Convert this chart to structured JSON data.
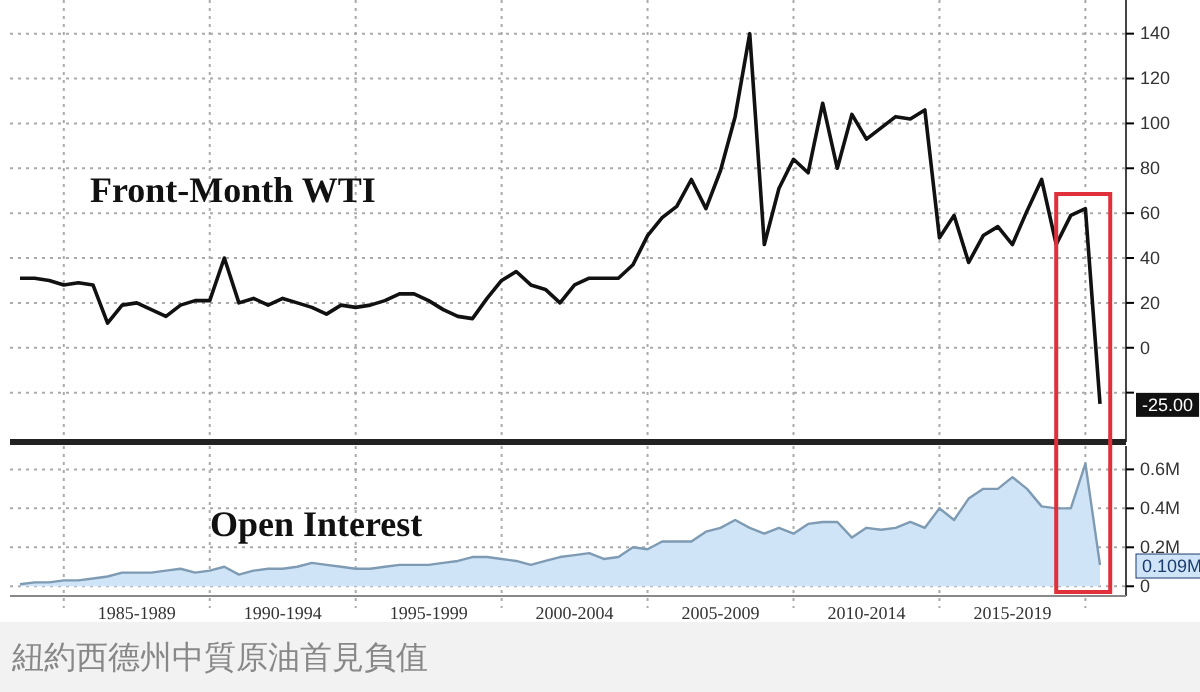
{
  "chart_data": [
    {
      "type": "line",
      "title": "Front-Month WTI",
      "tick_labels": "y",
      "grid": true,
      "ylim": [
        -42,
        155
      ],
      "categories": [
        null,
        null,
        null,
        null,
        null,
        null,
        null,
        null,
        null,
        null,
        null,
        null,
        null,
        null,
        null,
        null,
        null,
        null,
        null,
        null,
        null,
        null,
        null,
        null,
        null,
        null,
        null,
        null,
        null,
        null,
        null,
        null,
        null,
        null,
        null,
        null,
        null,
        null,
        null,
        null,
        null,
        null,
        null,
        null,
        null,
        null,
        null,
        null,
        null,
        null,
        null,
        null,
        null,
        null,
        null,
        null,
        null,
        null,
        null,
        null,
        null,
        null,
        null,
        null,
        null,
        null,
        null,
        null,
        null,
        null,
        null,
        null,
        null,
        null,
        null
      ],
      "yticks": [
        {
          "value": -20,
          "label": null
        },
        0,
        20,
        40,
        60,
        80,
        100,
        120,
        140
      ],
      "annotations": [
        "-25.00"
      ],
      "series": [
        {
          "color": "#111111",
          "values": [
            31,
            31,
            30,
            28,
            29,
            28,
            11,
            19,
            20,
            17,
            14,
            19,
            21,
            21,
            40,
            20,
            22,
            19,
            22,
            20,
            18,
            15,
            19,
            18,
            19,
            21,
            24,
            24,
            21,
            17,
            14,
            13,
            22,
            30,
            34,
            28,
            26,
            20,
            28,
            31,
            31,
            31,
            37,
            50,
            58,
            63,
            75,
            62,
            79,
            103,
            140,
            46,
            71,
            84,
            78,
            109,
            80,
            104,
            93,
            98,
            103,
            102,
            106,
            49,
            59,
            38,
            50,
            54,
            46,
            61,
            75,
            46,
            59,
            62,
            -25
          ]
        }
      ]
    },
    {
      "type": "area",
      "title": "Open Interest",
      "grid": true,
      "ylim": [
        -0.05,
        0.72
      ],
      "categories": [
        null,
        null,
        null,
        null,
        null,
        null,
        null,
        null,
        "1985-1989",
        null,
        null,
        null,
        null,
        null,
        null,
        null,
        null,
        null,
        "1990-1994",
        null,
        null,
        null,
        null,
        null,
        null,
        null,
        null,
        null,
        "1995-1999",
        null,
        null,
        null,
        null,
        null,
        null,
        null,
        null,
        null,
        "2000-2004",
        null,
        null,
        null,
        null,
        null,
        null,
        null,
        null,
        null,
        "2005-2009",
        null,
        null,
        null,
        null,
        null,
        null,
        null,
        null,
        null,
        "2010-2014",
        null,
        null,
        null,
        null,
        null,
        null,
        null,
        null,
        null,
        "2015-2019",
        null,
        null,
        null,
        null,
        null,
        null
      ],
      "yticks": [
        0,
        {
          "value": 0.2,
          "label": "0.2M"
        },
        {
          "value": 0.4,
          "label": "0.4M"
        },
        {
          "value": 0.6,
          "label": "0.6M"
        }
      ],
      "annotations": [
        "0.109M",
        "紐約西德州中質原油首見負值"
      ],
      "series": [
        {
          "color": "#7f9bb3",
          "values": [
            0.01,
            0.02,
            0.02,
            0.03,
            0.03,
            0.04,
            0.05,
            0.07,
            0.07,
            0.07,
            0.08,
            0.09,
            0.07,
            0.08,
            0.1,
            0.06,
            0.08,
            0.09,
            0.09,
            0.1,
            0.12,
            0.11,
            0.1,
            0.09,
            0.09,
            0.1,
            0.11,
            0.11,
            0.11,
            0.12,
            0.13,
            0.15,
            0.15,
            0.14,
            0.13,
            0.11,
            0.13,
            0.15,
            0.16,
            0.17,
            0.14,
            0.15,
            0.2,
            0.19,
            0.23,
            0.23,
            0.23,
            0.28,
            0.3,
            0.34,
            0.3,
            0.27,
            0.3,
            0.27,
            0.32,
            0.33,
            0.33,
            0.25,
            0.3,
            0.29,
            0.3,
            0.33,
            0.3,
            0.4,
            0.34,
            0.45,
            0.5,
            0.5,
            0.56,
            0.5,
            0.41,
            0.4,
            0.4,
            0.63,
            0.109
          ]
        }
      ]
    }
  ]
}
